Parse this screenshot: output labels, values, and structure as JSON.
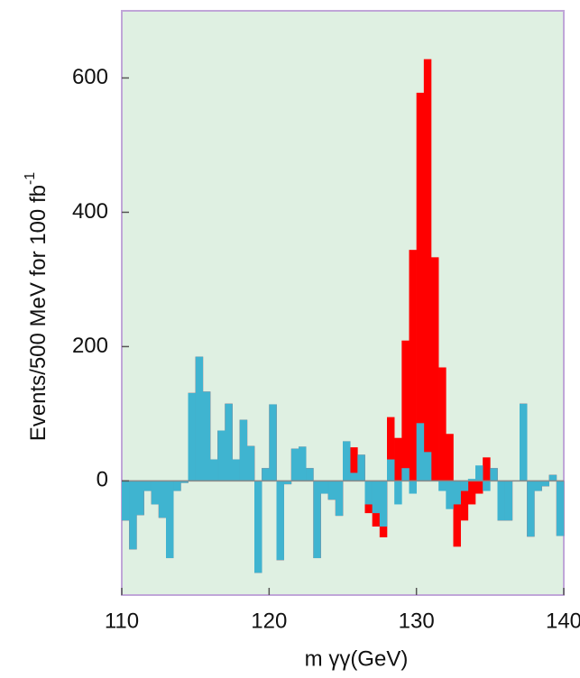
{
  "chart_data": {
    "type": "histogram",
    "x_label": "m γγ(GeV)",
    "y_label": "Events/500 MeV for 100 fb",
    "y_label_sup": "-1",
    "bins": [
      110,
      110.5,
      111,
      111.5,
      112,
      112.5,
      113,
      113.5,
      114,
      114.5,
      115,
      115.5,
      116,
      116.5,
      117,
      117.5,
      118,
      118.5,
      119,
      119.5,
      120,
      120.5,
      121,
      121.5,
      122,
      122.5,
      123,
      123.5,
      124,
      124.5,
      125,
      125.5,
      126,
      126.5,
      127,
      127.5,
      128,
      128.5,
      129,
      129.5,
      130,
      130.5,
      131,
      131.5,
      132,
      132.5,
      133,
      133.5,
      134,
      134.5,
      135,
      135.5,
      136,
      136.5,
      137,
      137.5,
      138,
      138.5,
      139,
      139.5,
      140
    ],
    "series": [
      {
        "color": "#ff0000",
        "values": [
          -59,
          -102,
          -51,
          -15,
          -35,
          -55,
          -115,
          -15,
          -3,
          131,
          185,
          133,
          32,
          75,
          115,
          32,
          91,
          52,
          -137,
          19,
          114,
          -118,
          -5,
          48,
          51,
          19,
          -115,
          -19,
          -28,
          -52,
          59,
          50,
          39,
          -48,
          -68,
          -84,
          95,
          64,
          209,
          344,
          578,
          628,
          333,
          169,
          70,
          -98,
          -59,
          -35,
          -19,
          35,
          19,
          -59,
          -59,
          0,
          115,
          -83,
          -15,
          -8,
          9,
          -82
        ]
      },
      {
        "color": "#3fb4d0",
        "values": [
          -59,
          -102,
          -51,
          -15,
          -35,
          -55,
          -115,
          -15,
          -3,
          131,
          185,
          133,
          32,
          75,
          115,
          32,
          91,
          52,
          -137,
          19,
          114,
          -118,
          -5,
          48,
          51,
          19,
          -115,
          -19,
          -28,
          -52,
          59,
          12,
          39,
          -35,
          -48,
          -68,
          32,
          -35,
          19,
          -19,
          86,
          43,
          0,
          -15,
          -42,
          -35,
          -15,
          3,
          23,
          -15,
          19,
          -59,
          -59,
          0,
          115,
          -83,
          -15,
          -8,
          9,
          -82
        ]
      }
    ],
    "xlim": [
      110,
      140
    ],
    "ylim": [
      -170,
      700
    ],
    "xticks": [
      110,
      120,
      130,
      140
    ],
    "yticks": [
      0,
      200,
      400,
      600
    ],
    "background": "#dff0e2"
  }
}
